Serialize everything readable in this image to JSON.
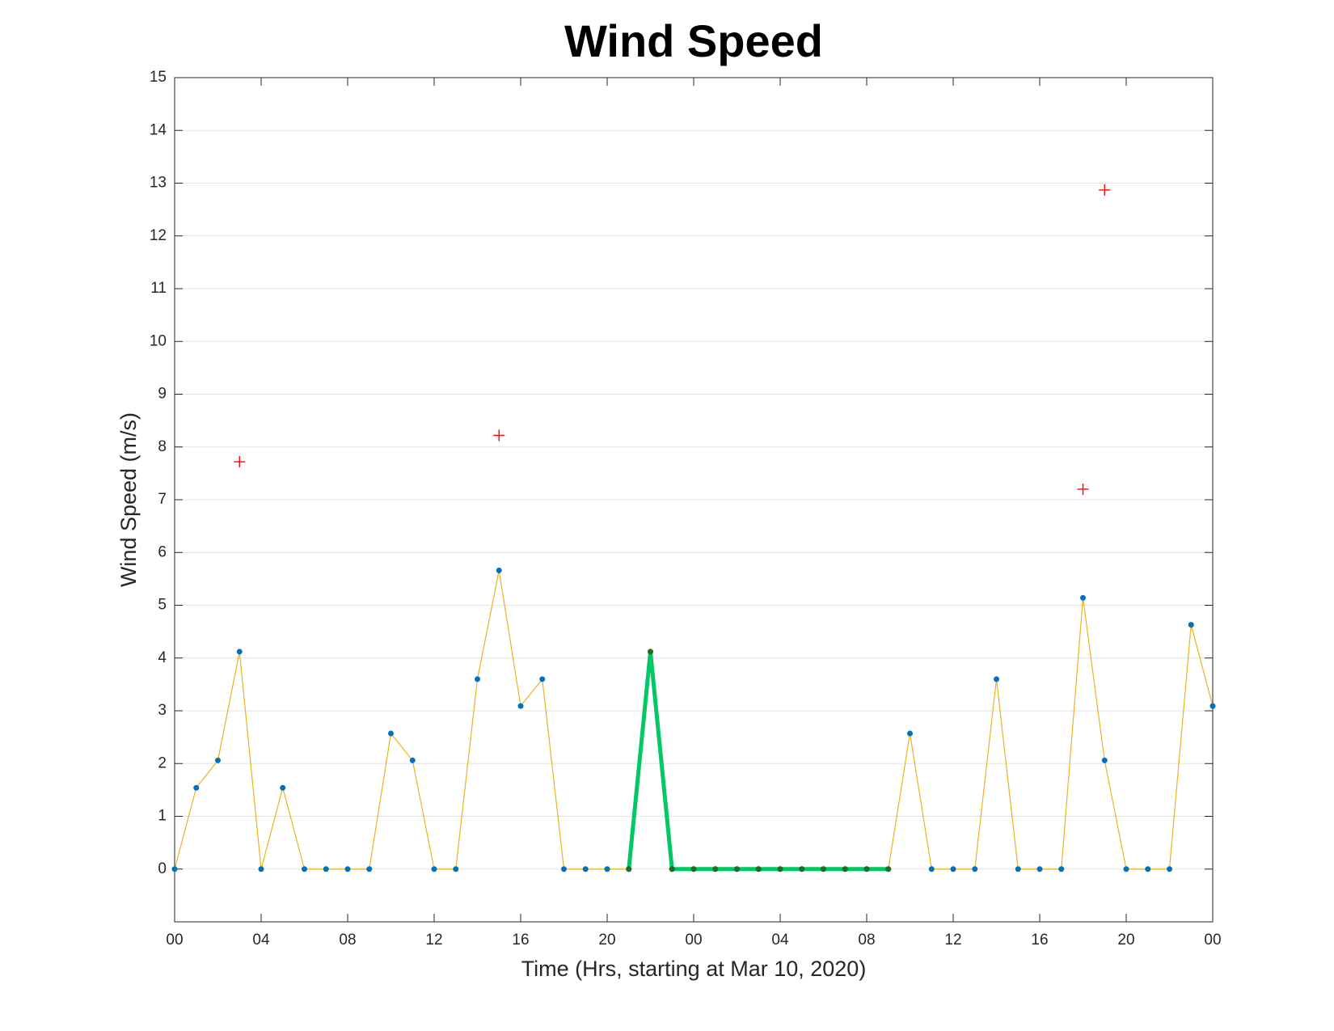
{
  "chart_data": {
    "type": "line",
    "title": "Wind Speed",
    "xlabel": "Time (Hrs, starting at Mar 10, 2020)",
    "ylabel": "Wind Speed (m/s)",
    "x": [
      0,
      1,
      2,
      3,
      4,
      5,
      6,
      7,
      8,
      9,
      10,
      11,
      12,
      13,
      14,
      15,
      16,
      17,
      18,
      19,
      20,
      21,
      22,
      23,
      24,
      25,
      26,
      27,
      28,
      29,
      30,
      31,
      32,
      33,
      34,
      35,
      36,
      37,
      38,
      39,
      40,
      41,
      42,
      43,
      44,
      45,
      46,
      47,
      48
    ],
    "series": [
      {
        "color": "#edb120",
        "marker_color": "#0072bd",
        "line_width": 1.2,
        "values": [
          0,
          1.54,
          2.06,
          4.12,
          0,
          1.54,
          0,
          0,
          0,
          0,
          2.57,
          2.06,
          0,
          0,
          3.6,
          5.66,
          3.09,
          3.6,
          0,
          0,
          0,
          0,
          4.12,
          0,
          0,
          0,
          0,
          0,
          0,
          0,
          0,
          0,
          0,
          0,
          2.57,
          0,
          0,
          0,
          3.6,
          0,
          0,
          0,
          5.14,
          2.06,
          0,
          0,
          0,
          4.63,
          3.09
        ]
      },
      {
        "color": "#00c864",
        "marker_color": "#1e6e1e",
        "line_width": 5,
        "values": [
          null,
          null,
          null,
          null,
          null,
          null,
          null,
          null,
          null,
          null,
          null,
          null,
          null,
          null,
          null,
          null,
          null,
          null,
          null,
          null,
          null,
          0,
          4.12,
          0,
          0,
          0,
          0,
          0,
          0,
          0,
          0,
          0,
          0,
          0,
          null,
          null,
          null,
          null,
          null,
          null,
          null,
          null,
          null,
          null,
          null,
          null,
          null,
          null,
          null
        ]
      }
    ],
    "outliers": {
      "x": [
        3,
        15,
        42,
        43
      ],
      "values": [
        7.72,
        8.22,
        7.2,
        12.87
      ],
      "color": "#ff0000"
    },
    "xlim": [
      0,
      48
    ],
    "xticks": [
      {
        "value": 0,
        "label": "00"
      },
      {
        "value": 4,
        "label": "04"
      },
      {
        "value": 8,
        "label": "08"
      },
      {
        "value": 12,
        "label": "12"
      },
      {
        "value": 16,
        "label": "16"
      },
      {
        "value": 20,
        "label": "20"
      },
      {
        "value": 24,
        "label": "00"
      },
      {
        "value": 28,
        "label": "04"
      },
      {
        "value": 32,
        "label": "08"
      },
      {
        "value": 36,
        "label": "12"
      },
      {
        "value": 40,
        "label": "16"
      },
      {
        "value": 44,
        "label": "20"
      },
      {
        "value": 48,
        "label": "00"
      }
    ],
    "ylim": [
      -1,
      15
    ],
    "yticks": [
      0,
      1,
      2,
      3,
      4,
      5,
      6,
      7,
      8,
      9,
      10,
      11,
      12,
      13,
      14,
      15
    ],
    "grid": true
  }
}
